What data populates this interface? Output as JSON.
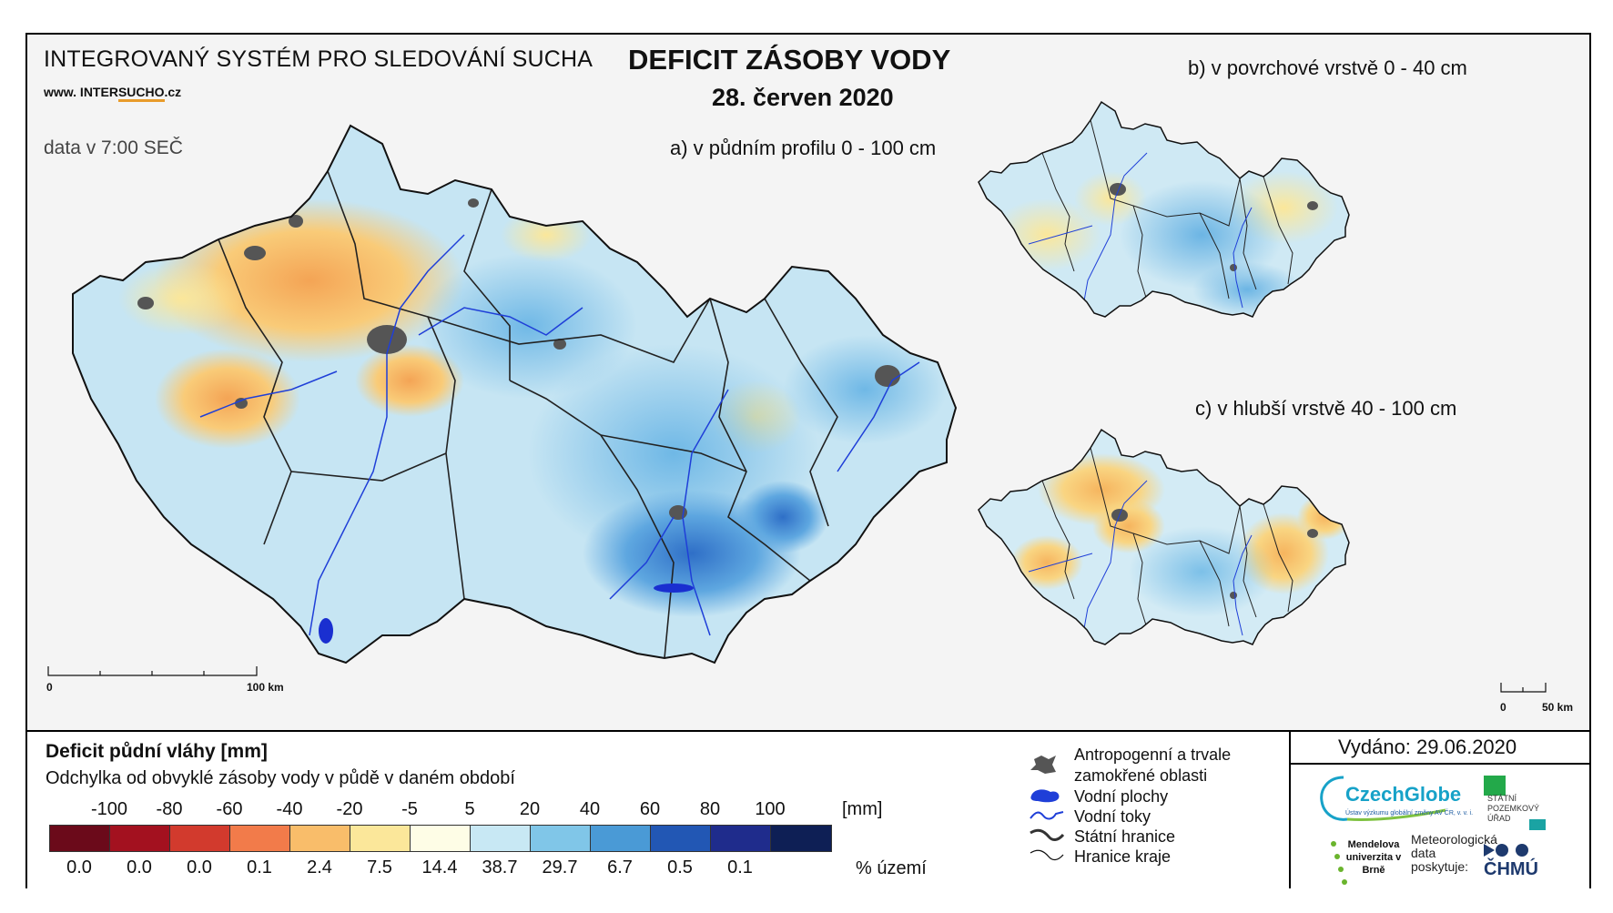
{
  "header": {
    "system_title": "INTEGROVANÝ SYSTÉM PRO SLEDOVÁNÍ SUCHA",
    "website_pre": "www. INTER",
    "website_hl": "SUCHO",
    "website_post": ".cz",
    "data_time": "data v 7:00 SEČ",
    "main_title": "DEFICIT ZÁSOBY VODY",
    "main_date": "28. červen 2020"
  },
  "maps": {
    "a_title": "a) v půdním profilu 0 - 100 cm",
    "b_title": "b) v povrchové vrstvě 0 - 40 cm",
    "c_title": "c) v hlubší vrstvě 40 - 100 cm"
  },
  "scalebars": {
    "main_zero": "0",
    "main_end": "100 km",
    "small_zero": "0",
    "small_end": "50 km"
  },
  "legend": {
    "title": "Deficit půdní vláhy  [mm]",
    "subtitle": "Odchylka od obvyklé zásoby vody v půdě v daném období",
    "breaks": [
      "-100",
      "-80",
      "-60",
      "-40",
      "-20",
      "-5",
      "5",
      "20",
      "40",
      "60",
      "80",
      "100"
    ],
    "unit_mm": "[mm]",
    "colors": [
      "#6b0a1a",
      "#a3111f",
      "#d23a2d",
      "#f27b4a",
      "#f9bd6a",
      "#fbe79a",
      "#fefde6",
      "#c8e8f4",
      "#80c6e8",
      "#4a9ad6",
      "#2257b4",
      "#1f2c8c",
      "#0e1f55"
    ],
    "percent": [
      "0.0",
      "0.0",
      "0.0",
      "0.1",
      "2.4",
      "7.5",
      "14.4",
      "38.7",
      "29.7",
      "6.7",
      "0.5",
      "0.1"
    ],
    "unit_pct": "% území"
  },
  "symbols": {
    "anthropogenic": "Antropogenní a trvale zamokřené oblasti",
    "anthropogenic_l1": "Antropogenní a trvale",
    "anthropogenic_l2": "zamokřené oblasti",
    "water_bodies": "Vodní plochy",
    "rivers": "Vodní toky",
    "state_border": "Státní hranice",
    "region_border": "Hranice kraje"
  },
  "footer": {
    "issued": "Vydáno: 29.06.2020",
    "czechglobe": "CzechGlobe",
    "czechglobe_sub": "Ústav výzkumu globální změny AV ČR, v. v. i.",
    "spu": "STÁTNÍ POZEMKOVÝ ÚŘAD",
    "mendel": "Mendelova univerzita v Brně",
    "meteo": "Meteorologická data poskytuje:",
    "chmu": "ČHMÚ"
  }
}
